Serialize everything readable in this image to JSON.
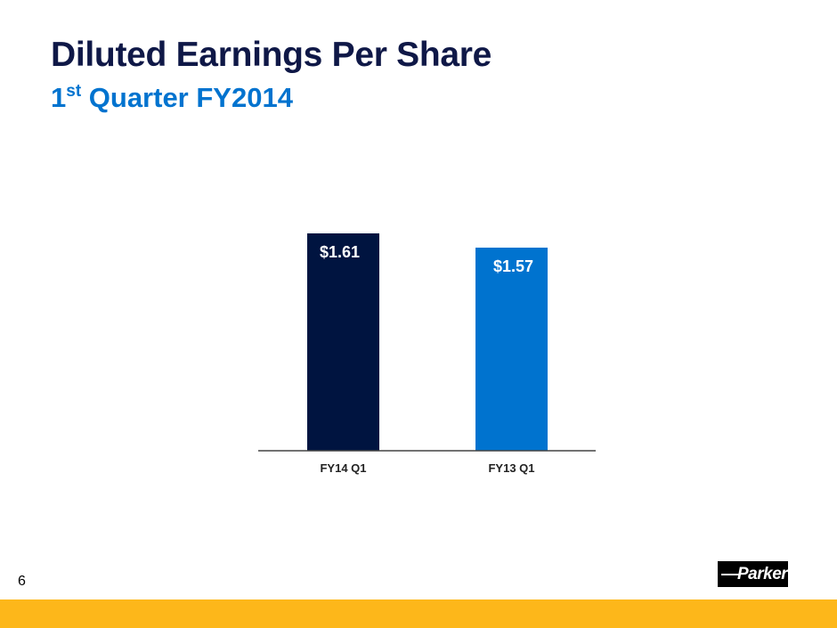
{
  "slide": {
    "title": "Diluted Earnings Per Share",
    "subtitle_ordinal": "1",
    "subtitle_suffix": "st",
    "subtitle_rest": " Quarter FY2014",
    "page_number": "6",
    "logo_text": "Parker"
  },
  "chart_data": {
    "type": "bar",
    "title": "",
    "xlabel": "",
    "ylabel": "",
    "categories": [
      "FY14 Q1",
      "FY13 Q1"
    ],
    "values": [
      1.61,
      1.57
    ],
    "data_labels": [
      "$1.61",
      "$1.57"
    ],
    "colors": [
      "#001440",
      "#0073cf"
    ],
    "ylim": [
      1.0,
      1.7
    ],
    "grid": false
  },
  "colors": {
    "title": "#0f1847",
    "accent": "#0073cf",
    "footer": "#fdb71a"
  }
}
